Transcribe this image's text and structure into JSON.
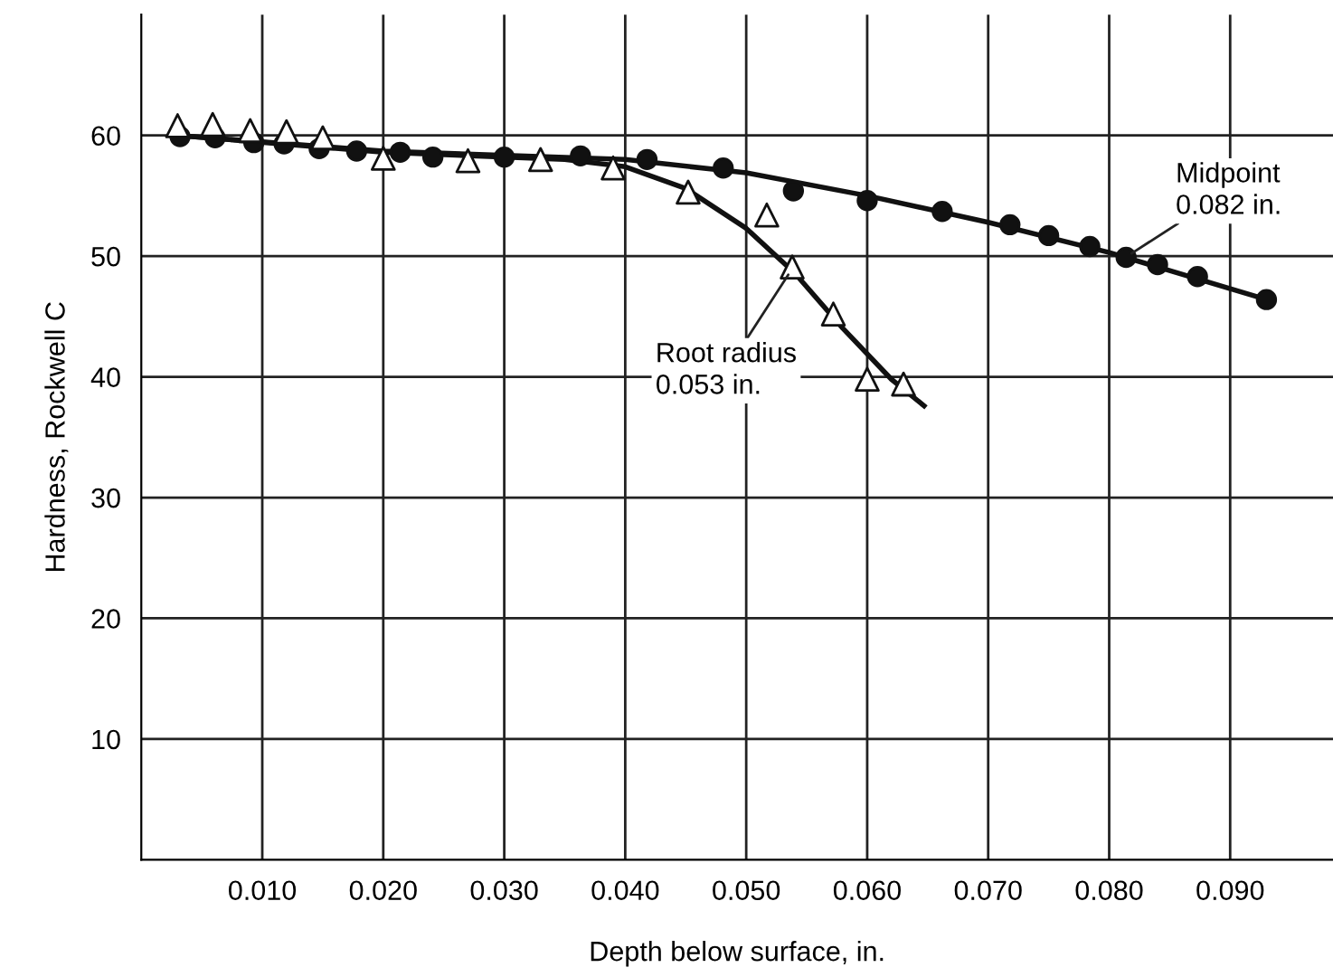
{
  "chart_data": {
    "type": "scatter",
    "xlabel": "Depth below surface, in.",
    "ylabel": "Hardness, Rockwell C",
    "xlim": [
      0,
      0.0985
    ],
    "ylim": [
      0,
      70
    ],
    "xticks": [
      {
        "value": 0.01,
        "label": "0.010"
      },
      {
        "value": 0.02,
        "label": "0.020"
      },
      {
        "value": 0.03,
        "label": "0.030"
      },
      {
        "value": 0.04,
        "label": "0.040"
      },
      {
        "value": 0.05,
        "label": "0.050"
      },
      {
        "value": 0.06,
        "label": "0.060"
      },
      {
        "value": 0.07,
        "label": "0.070"
      },
      {
        "value": 0.08,
        "label": "0.080"
      },
      {
        "value": 0.09,
        "label": "0.090"
      }
    ],
    "yticks": [
      10,
      20,
      30,
      40,
      50,
      60
    ],
    "grid": true,
    "legend": false,
    "series": [
      {
        "type": "line",
        "color": "#111111",
        "marker": "none",
        "x": [
          0.003,
          0.02,
          0.035,
          0.04,
          0.045,
          0.05,
          0.054,
          0.058,
          0.062,
          0.0647
        ],
        "values": [
          60.0,
          58.6,
          58.0,
          57.4,
          55.6,
          52.3,
          48.6,
          44.0,
          39.8,
          37.6
        ]
      },
      {
        "type": "line",
        "color": "#111111",
        "marker": "none",
        "x": [
          0.003,
          0.02,
          0.04,
          0.05,
          0.06,
          0.07,
          0.08,
          0.093
        ],
        "values": [
          60.0,
          58.7,
          58.0,
          56.9,
          55.0,
          52.8,
          50.3,
          46.4
        ]
      },
      {
        "color": "#111111",
        "marker": "circle",
        "x": [
          0.0032,
          0.0061,
          0.0093,
          0.0118,
          0.0147,
          0.0178,
          0.0214,
          0.0241,
          0.03,
          0.0363,
          0.0418,
          0.0481,
          0.0539,
          0.06,
          0.0662,
          0.0718,
          0.075,
          0.0784,
          0.0814,
          0.084,
          0.0873,
          0.093
        ],
        "values": [
          59.9,
          59.8,
          59.4,
          59.3,
          58.9,
          58.7,
          58.6,
          58.2,
          58.2,
          58.3,
          58.0,
          57.3,
          55.4,
          54.6,
          53.7,
          52.6,
          51.7,
          50.8,
          49.9,
          49.3,
          48.3,
          46.4
        ]
      },
      {
        "color": "#ffffff",
        "marker": "triangle",
        "x": [
          0.003,
          0.0059,
          0.009,
          0.012,
          0.015,
          0.02,
          0.027,
          0.033,
          0.039,
          0.0452,
          0.0517,
          0.0538,
          0.0572,
          0.06,
          0.063
        ],
        "values": [
          60.8,
          60.9,
          60.4,
          60.3,
          59.8,
          58.1,
          57.9,
          58.0,
          57.3,
          55.3,
          53.4,
          49.1,
          45.2,
          39.8,
          39.4
        ]
      }
    ],
    "annotations": [
      {
        "text": "Root radius\n0.053 in.",
        "x": 0.0537,
        "y": 48.8
      },
      {
        "text": "Midpoint\n0.082 in.",
        "x": 0.0815,
        "y": 50.0
      }
    ]
  }
}
